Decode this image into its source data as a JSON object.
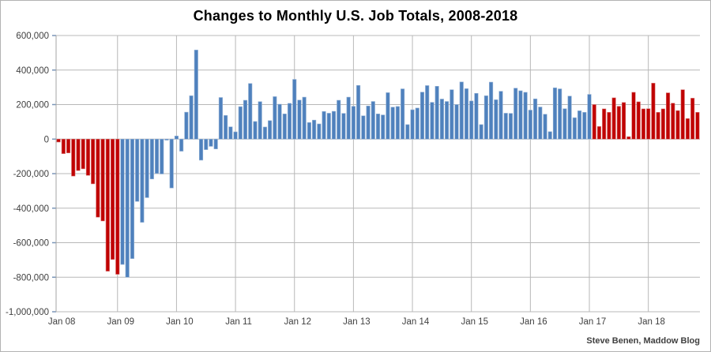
{
  "attribution": "Steve Benen, Maddow Blog",
  "colors": {
    "bar_red": "#c00000",
    "bar_red_edge": "#d77070",
    "bar_blue": "#4f81bd",
    "bar_blue_edge": "#94b2d6",
    "gridline": "#b8b8b8",
    "axis_line": "#a6a6a6",
    "tick_mark": "#7a96b8",
    "axis_text": "#3f3f3f",
    "title_text": "#000000",
    "background": "#ffffff",
    "frame_border": "#b3b3b3"
  },
  "chart_data": {
    "type": "bar",
    "title": "Changes to Monthly U.S. Job Totals, 2008-2018",
    "subtitle": "",
    "xlabel": "",
    "ylabel": "",
    "start_month": "Jan 2008",
    "end_month": "Nov 2018",
    "values_unit": "jobs per month (thousands)",
    "ylim": [
      -1000000,
      600000
    ],
    "grid": true,
    "legend": "none",
    "x_tick_labels": [
      "Jan 08",
      "Jan 09",
      "Jan 10",
      "Jan 11",
      "Jan 12",
      "Jan 13",
      "Jan 14",
      "Jan 15",
      "Jan 16",
      "Jan 17",
      "Jan 18"
    ],
    "y_ticks": [
      600000,
      400000,
      200000,
      0,
      -200000,
      -400000,
      -600000,
      -800000,
      -1000000
    ],
    "y_tick_labels": [
      "600,000",
      "400,000",
      "200,000",
      "0",
      "-200,000",
      "-400,000",
      "-600,000",
      "-800,000",
      "-1,000,000"
    ],
    "values_thousands": [
      -17,
      -84,
      -80,
      -214,
      -182,
      -172,
      -210,
      -259,
      -452,
      -474,
      -765,
      -697,
      -783,
      -726,
      -800,
      -692,
      -361,
      -482,
      -339,
      -231,
      -199,
      -202,
      -6,
      -283,
      18,
      -70,
      156,
      251,
      516,
      -122,
      -61,
      -42,
      -57,
      241,
      137,
      71,
      42,
      188,
      225,
      322,
      102,
      217,
      70,
      107,
      246,
      202,
      146,
      207,
      346,
      226,
      243,
      96,
      110,
      88,
      160,
      150,
      161,
      225,
      149,
      243,
      190,
      311,
      135,
      192,
      218,
      146,
      140,
      269,
      185,
      189,
      291,
      84,
      170,
      180,
      272,
      310,
      213,
      306,
      232,
      218,
      286,
      200,
      331,
      292,
      221,
      265,
      84,
      251,
      330,
      228,
      277,
      150,
      149,
      295,
      280,
      271,
      168,
      233,
      186,
      144,
      43,
      297,
      291,
      176,
      249,
      124,
      164,
      155,
      259,
      200,
      73,
      175,
      155,
      239,
      190,
      212,
      14,
      271,
      216,
      175,
      176,
      324,
      155,
      175,
      268,
      208,
      165,
      286,
      119,
      237,
      155
    ],
    "eras": [
      {
        "name": "red-2008",
        "start_index": 0,
        "end_index": 12,
        "color": "#c00000"
      },
      {
        "name": "blue-2009-2017",
        "start_index": 13,
        "end_index": 108,
        "color": "#4f81bd"
      },
      {
        "name": "red-2017-2018",
        "start_index": 109,
        "end_index": 130,
        "color": "#c00000"
      }
    ]
  }
}
